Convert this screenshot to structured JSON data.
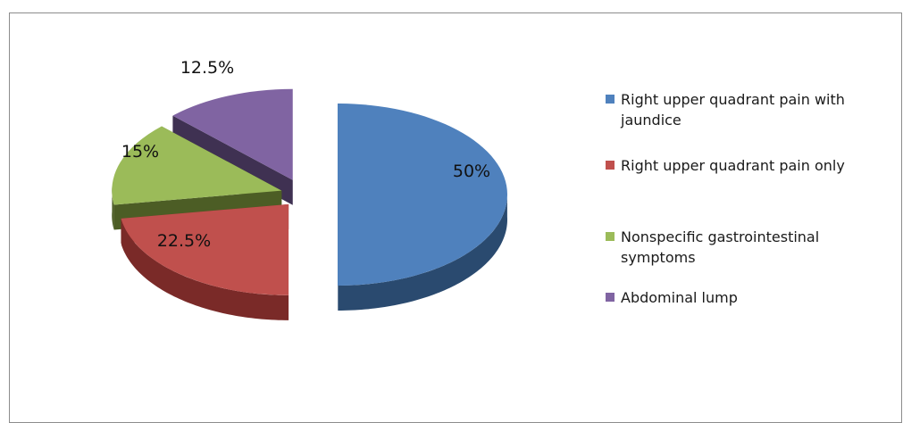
{
  "chart_data": {
    "type": "pie",
    "title": "",
    "labels": [
      "Right upper quadrant pain with jaundice",
      "Right upper quadrant pain only",
      "Nonspecific gastrointestinal symptoms",
      "Abdominal lump"
    ],
    "values": [
      50,
      22.5,
      15,
      12.5
    ],
    "value_labels": [
      "50%",
      "22.5%",
      "15%",
      "12.5%"
    ],
    "colors": [
      "#4f81bd",
      "#c0504d",
      "#9bbb59",
      "#8064a2"
    ],
    "side_colors": [
      "#2a4a6f",
      "#7a2a28",
      "#4c5d25",
      "#3f3152"
    ],
    "exploded": true,
    "three_d": true,
    "legend_position": "right"
  }
}
